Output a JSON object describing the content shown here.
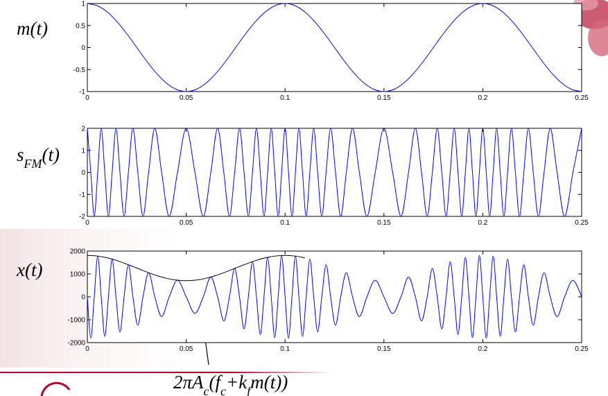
{
  "chart_data": [
    {
      "type": "line",
      "ylabel": [
        {
          "text": "m(t)"
        }
      ],
      "x": [
        0,
        0.005,
        0.01,
        0.015,
        0.02,
        0.025,
        0.03,
        0.035,
        0.04,
        0.045,
        0.05,
        0.055,
        0.06,
        0.065,
        0.07,
        0.075,
        0.08,
        0.085,
        0.09,
        0.095,
        0.1,
        0.105,
        0.11,
        0.115,
        0.12,
        0.125,
        0.13,
        0.135,
        0.14,
        0.145,
        0.15,
        0.155,
        0.16,
        0.165,
        0.17,
        0.175,
        0.18,
        0.185,
        0.19,
        0.195,
        0.2,
        0.205,
        0.21,
        0.215,
        0.22,
        0.225,
        0.23,
        0.235,
        0.24,
        0.245,
        0.25
      ],
      "series": [
        {
          "color": "#0000ff",
          "values": [
            1,
            0.951,
            0.809,
            0.588,
            0.309,
            0,
            -0.309,
            -0.588,
            -0.809,
            -0.951,
            -1,
            -0.951,
            -0.809,
            -0.588,
            -0.309,
            0,
            0.309,
            0.588,
            0.809,
            0.951,
            1,
            0.951,
            0.809,
            0.588,
            0.309,
            0,
            -0.309,
            -0.588,
            -0.809,
            -0.951,
            -1,
            -0.951,
            -0.809,
            -0.588,
            -0.309,
            0,
            0.309,
            0.588,
            0.809,
            0.951,
            1,
            0.951,
            0.809,
            0.588,
            0.309,
            0,
            -0.309,
            -0.588,
            -0.809,
            -0.951,
            -1
          ]
        }
      ],
      "xlim": [
        0,
        0.25
      ],
      "ylim": [
        -1,
        1
      ],
      "xticks": [
        0,
        0.05,
        0.1,
        0.15,
        0.2,
        0.25
      ],
      "yticks": [
        -1,
        -0.5,
        0,
        0.5,
        1
      ]
    },
    {
      "type": "line",
      "ylabel": [
        {
          "text": "s"
        },
        {
          "text": "FM",
          "sub": true
        },
        {
          "text": "(t)"
        }
      ],
      "x": [
        0,
        0.00174,
        0.00348,
        0.00524,
        0.00701,
        0.00882,
        0.01066,
        0.01254,
        0.01448,
        0.01648,
        0.01857,
        0.02075,
        0.02305,
        0.02551,
        0.02814,
        0.03099,
        0.03412,
        0.03757,
        0.04139,
        0.04559,
        0.05,
        0.05441,
        0.05861,
        0.06243,
        0.06588,
        0.06901,
        0.07186,
        0.07449,
        0.07695,
        0.07925,
        0.08143,
        0.08352,
        0.08552,
        0.08746,
        0.08934,
        0.09118,
        0.09299,
        0.09476,
        0.09652,
        0.09826,
        0.1,
        0.10174,
        0.10348,
        0.10524,
        0.10701,
        0.10882,
        0.11066,
        0.11254,
        0.11448,
        0.11648,
        0.11857,
        0.12075,
        0.12305,
        0.12551,
        0.12814,
        0.13099,
        0.13412,
        0.13757,
        0.14139,
        0.14559,
        0.15,
        0.15441,
        0.15861,
        0.16243,
        0.16588,
        0.16901,
        0.17186,
        0.17449,
        0.17695,
        0.17925,
        0.18143,
        0.18352,
        0.18552,
        0.18746,
        0.18934,
        0.19118,
        0.19299,
        0.19476,
        0.19652,
        0.19826,
        0.2,
        0.20174,
        0.20348,
        0.20524,
        0.20701,
        0.20882,
        0.21066,
        0.21254,
        0.21448,
        0.21648,
        0.21857,
        0.22075,
        0.22305,
        0.22551,
        0.22814,
        0.23099,
        0.23412,
        0.23757,
        0.24139,
        0.24559,
        0.25
      ],
      "series": [
        {
          "color": "#0000ff",
          "values": [
            2,
            0,
            -2,
            0,
            2,
            0,
            -2,
            0,
            2,
            0,
            -2,
            0,
            2,
            0,
            -2,
            0,
            2,
            0,
            -2,
            0,
            2,
            0,
            -2,
            0,
            2,
            0,
            -2,
            0,
            2,
            0,
            -2,
            0,
            2,
            0,
            -2,
            0,
            2,
            0,
            -2,
            0,
            2,
            0,
            -2,
            0,
            2,
            0,
            -2,
            0,
            2,
            0,
            -2,
            0,
            2,
            0,
            -2,
            0,
            2,
            0,
            -2,
            0,
            2,
            0,
            -2,
            0,
            2,
            0,
            -2,
            0,
            2,
            0,
            -2,
            0,
            2,
            0,
            -2,
            0,
            2,
            0,
            -2,
            0,
            2,
            0,
            -2,
            0,
            2,
            0,
            -2,
            0,
            2,
            0,
            -2,
            0,
            2,
            0,
            -2,
            0,
            2,
            0,
            -2,
            0,
            2
          ]
        }
      ],
      "xlim": [
        0,
        0.25
      ],
      "ylim": [
        -2,
        2
      ],
      "xticks": [
        0,
        0.05,
        0.1,
        0.15,
        0.2,
        0.25
      ],
      "yticks": [
        -2,
        -1,
        0,
        1,
        2
      ]
    },
    {
      "type": "line",
      "ylabel": [
        {
          "text": "x(t)"
        }
      ],
      "x": [
        0,
        0.00174,
        0.00348,
        0.00524,
        0.00701,
        0.00882,
        0.01066,
        0.01254,
        0.01448,
        0.01648,
        0.01857,
        0.02075,
        0.02305,
        0.02551,
        0.02814,
        0.03099,
        0.03412,
        0.03757,
        0.04139,
        0.04559,
        0.05,
        0.05441,
        0.05861,
        0.06243,
        0.06588,
        0.06901,
        0.07186,
        0.07449,
        0.07695,
        0.07925,
        0.08143,
        0.08352,
        0.08552,
        0.08746,
        0.08934,
        0.09118,
        0.09299,
        0.09476,
        0.09652,
        0.09826,
        0.1,
        0.10174,
        0.10348,
        0.10524,
        0.10701,
        0.10882,
        0.11066,
        0.11254,
        0.11448,
        0.11648,
        0.11857,
        0.12075,
        0.12305,
        0.12551,
        0.12814,
        0.13099,
        0.13412,
        0.13757,
        0.14139,
        0.14559,
        0.15,
        0.15441,
        0.15861,
        0.16243,
        0.16588,
        0.16901,
        0.17186,
        0.17449,
        0.17695,
        0.17925,
        0.18143,
        0.18352,
        0.18552,
        0.18746,
        0.18934,
        0.19118,
        0.19299,
        0.19476,
        0.19652,
        0.19826,
        0.2,
        0.20174,
        0.20348,
        0.20524,
        0.20701,
        0.20882,
        0.21066,
        0.21254,
        0.21448,
        0.21648,
        0.21857,
        0.22075,
        0.22305,
        0.22551,
        0.22814,
        0.23099,
        0.23412,
        0.23757,
        0.24139,
        0.24559,
        0.25
      ],
      "series": [
        {
          "color": "#0000ff",
          "values": [
            0,
            -1806,
            0,
            1780,
            0,
            -1727,
            0,
            1647,
            0,
            -1538,
            0,
            1402,
            0,
            -1239,
            0,
            1053,
            0,
            -864,
            0,
            725,
            0,
            -725,
            0,
            864,
            0,
            -1053,
            0,
            1239,
            0,
            -1402,
            0,
            1538,
            0,
            -1647,
            0,
            1727,
            0,
            -1780,
            0,
            1806,
            0,
            -1806,
            0,
            1780,
            0,
            -1727,
            0,
            1647,
            0,
            -1538,
            0,
            1402,
            0,
            -1239,
            0,
            1053,
            0,
            -864,
            0,
            725,
            0,
            -725,
            0,
            864,
            0,
            -1053,
            0,
            1239,
            0,
            -1402,
            0,
            1538,
            0,
            -1647,
            0,
            1727,
            0,
            -1780,
            0,
            1806,
            0,
            -1806,
            0,
            1780,
            0,
            -1727,
            0,
            1647,
            0,
            -1538,
            0,
            1402,
            0,
            -1239,
            0,
            1053,
            0,
            -864,
            0,
            725,
            0
          ]
        },
        {
          "color": "#000000",
          "x": [
            0,
            0.005,
            0.01,
            0.015,
            0.02,
            0.025,
            0.03,
            0.035,
            0.04,
            0.045,
            0.05,
            0.055,
            0.06,
            0.065,
            0.07,
            0.075,
            0.08,
            0.085,
            0.09,
            0.095,
            0.1,
            0.105,
            0.11
          ],
          "values": [
            1809,
            1782,
            1704,
            1582,
            1427,
            1257,
            1086,
            932,
            809,
            731,
            704,
            731,
            809,
            932,
            1086,
            1257,
            1427,
            1582,
            1704,
            1782,
            1809,
            1782,
            1704
          ]
        }
      ],
      "xlim": [
        0,
        0.25
      ],
      "ylim": [
        -2000,
        2000
      ],
      "xticks": [
        0,
        0.05,
        0.1,
        0.15,
        0.2,
        0.25
      ],
      "yticks": [
        -2000,
        -1000,
        0,
        1000,
        2000
      ],
      "annotation": [
        {
          "text": "2πA"
        },
        {
          "text": "c",
          "sub": true
        },
        {
          "text": "(f"
        },
        {
          "text": "c",
          "sub": true
        },
        {
          "text": "+k"
        },
        {
          "text": "f",
          "sub": true
        },
        {
          "text": "m(t))"
        }
      ]
    }
  ]
}
